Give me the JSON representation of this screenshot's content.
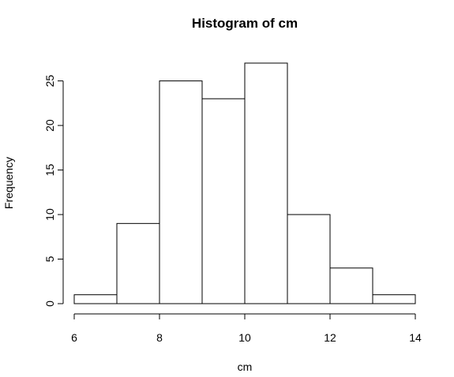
{
  "chart_data": {
    "type": "bar",
    "title": "Histogram of cm",
    "xlabel": "cm",
    "ylabel": "Frequency",
    "bins": [
      {
        "start": 6,
        "end": 7,
        "count": 1
      },
      {
        "start": 7,
        "end": 8,
        "count": 9
      },
      {
        "start": 8,
        "end": 9,
        "count": 25
      },
      {
        "start": 9,
        "end": 10,
        "count": 23
      },
      {
        "start": 10,
        "end": 11,
        "count": 27
      },
      {
        "start": 11,
        "end": 12,
        "count": 10
      },
      {
        "start": 12,
        "end": 13,
        "count": 4
      },
      {
        "start": 13,
        "end": 14,
        "count": 1
      }
    ],
    "xlim": [
      6,
      14
    ],
    "ylim": [
      0,
      27
    ],
    "x_ticks": [
      "6",
      "8",
      "10",
      "12",
      "14"
    ],
    "y_ticks": [
      "0",
      "5",
      "10",
      "15",
      "20",
      "25"
    ],
    "grid": false,
    "legend": "none"
  }
}
